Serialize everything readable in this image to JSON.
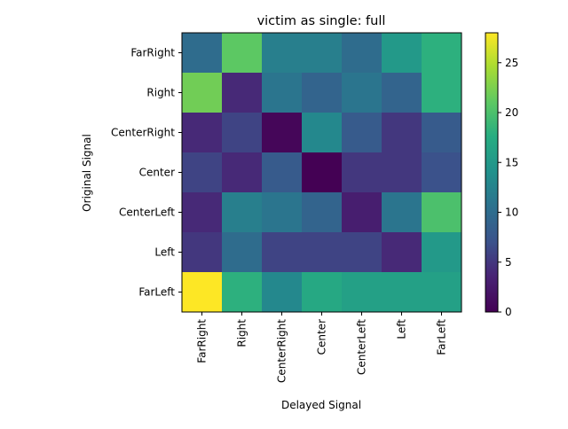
{
  "chart_data": {
    "type": "heatmap",
    "title": "victim as single: full",
    "xlabel": "Delayed Signal",
    "ylabel": "Original Signal",
    "x_categories": [
      "FarRight",
      "Right",
      "CenterRight",
      "Center",
      "CenterLeft",
      "Left",
      "FarLeft"
    ],
    "y_categories": [
      "FarRight",
      "Right",
      "CenterRight",
      "Center",
      "CenterLeft",
      "Left",
      "FarLeft"
    ],
    "values": [
      [
        10,
        21,
        12,
        12,
        10,
        15,
        18
      ],
      [
        22,
        4,
        11,
        9,
        11,
        9,
        18
      ],
      [
        4,
        6,
        0.5,
        13,
        8,
        5,
        8
      ],
      [
        6,
        4,
        8,
        0,
        5,
        5,
        7
      ],
      [
        4,
        12,
        11,
        9,
        3,
        11,
        20
      ],
      [
        5,
        10,
        6,
        6,
        6,
        4,
        15
      ],
      [
        28,
        18,
        13,
        17,
        16,
        16,
        16
      ]
    ],
    "colormap": "viridis",
    "colorbar": {
      "range": [
        0,
        28
      ],
      "ticks": [
        0,
        5,
        10,
        15,
        20,
        25
      ]
    }
  }
}
